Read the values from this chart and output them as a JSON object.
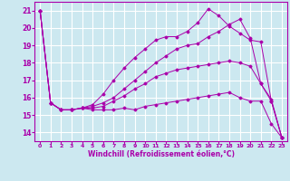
{
  "xlabel": "Windchill (Refroidissement éolien,°C)",
  "bg_color": "#cce8f0",
  "line_color": "#aa00aa",
  "grid_color": "#ffffff",
  "xlim": [
    -0.5,
    23.5
  ],
  "ylim": [
    13.5,
    21.5
  ],
  "yticks": [
    14,
    15,
    16,
    17,
    18,
    19,
    20,
    21
  ],
  "xticks": [
    0,
    1,
    2,
    3,
    4,
    5,
    6,
    7,
    8,
    9,
    10,
    11,
    12,
    13,
    14,
    15,
    16,
    17,
    18,
    19,
    20,
    21,
    22,
    23
  ],
  "line1_x": [
    0,
    1,
    2,
    3,
    4,
    5,
    6,
    7,
    8,
    9,
    10,
    11,
    12,
    13,
    14,
    15,
    16,
    17,
    18,
    19,
    20,
    21,
    22,
    23
  ],
  "line1_y": [
    21.0,
    15.7,
    15.3,
    15.3,
    15.4,
    15.3,
    15.3,
    15.3,
    15.4,
    15.3,
    15.5,
    15.6,
    15.7,
    15.8,
    15.9,
    16.0,
    16.1,
    16.2,
    16.3,
    16.0,
    15.8,
    15.8,
    14.5,
    13.7
  ],
  "line2_x": [
    0,
    1,
    2,
    3,
    4,
    5,
    6,
    7,
    8,
    9,
    10,
    11,
    12,
    13,
    14,
    15,
    16,
    17,
    18,
    19,
    20,
    21,
    22,
    23
  ],
  "line2_y": [
    21.0,
    15.7,
    15.3,
    15.3,
    15.4,
    15.5,
    15.7,
    16.0,
    16.5,
    17.0,
    17.5,
    18.0,
    18.4,
    18.8,
    19.0,
    19.1,
    19.5,
    19.8,
    20.2,
    20.5,
    19.4,
    16.8,
    15.8,
    13.7
  ],
  "line3_x": [
    0,
    1,
    2,
    3,
    4,
    5,
    6,
    7,
    8,
    9,
    10,
    11,
    12,
    13,
    14,
    15,
    16,
    17,
    18,
    19,
    20,
    21,
    22,
    23
  ],
  "line3_y": [
    21.0,
    15.7,
    15.3,
    15.3,
    15.4,
    15.6,
    16.2,
    17.0,
    17.7,
    18.3,
    18.8,
    19.3,
    19.5,
    19.5,
    19.8,
    20.3,
    21.1,
    20.7,
    20.1,
    19.7,
    19.3,
    19.2,
    15.8,
    13.7
  ],
  "line4_x": [
    0,
    1,
    2,
    3,
    4,
    5,
    6,
    7,
    8,
    9,
    10,
    11,
    12,
    13,
    14,
    15,
    16,
    17,
    18,
    19,
    20,
    21,
    22,
    23
  ],
  "line4_y": [
    21.0,
    15.7,
    15.3,
    15.3,
    15.4,
    15.4,
    15.5,
    15.8,
    16.1,
    16.5,
    16.8,
    17.2,
    17.4,
    17.6,
    17.7,
    17.8,
    17.9,
    18.0,
    18.1,
    18.0,
    17.8,
    16.8,
    15.9,
    13.7
  ]
}
